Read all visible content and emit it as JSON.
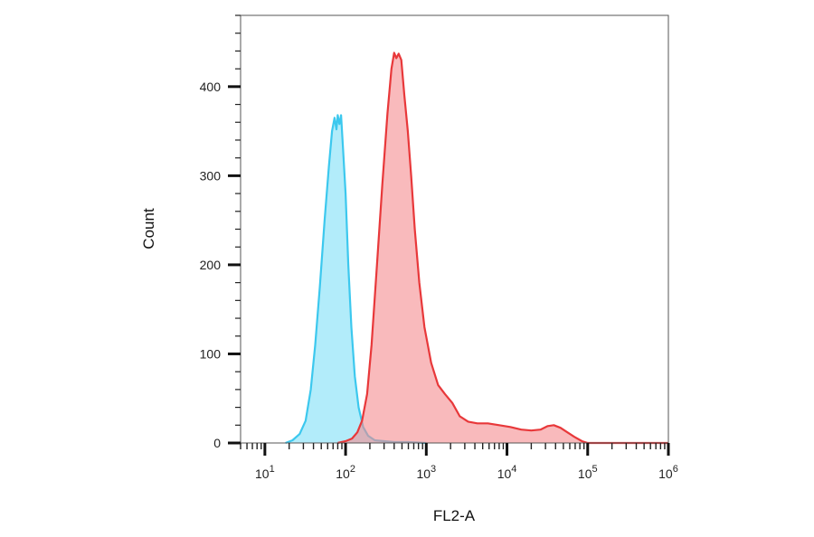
{
  "chart_data": {
    "type": "area",
    "xlabel": "FL2-A",
    "ylabel": "Count",
    "x_scale": "log10",
    "xlim": [
      5,
      1000000
    ],
    "ylim": [
      0,
      480
    ],
    "x_ticks": [
      {
        "value": 10,
        "base": "10",
        "exp": "1"
      },
      {
        "value": 100,
        "base": "10",
        "exp": "2"
      },
      {
        "value": 1000,
        "base": "10",
        "exp": "3"
      },
      {
        "value": 10000,
        "base": "10",
        "exp": "4"
      },
      {
        "value": 100000,
        "base": "10",
        "exp": "5"
      },
      {
        "value": 1000000,
        "base": "10",
        "exp": "6"
      }
    ],
    "y_ticks": [
      {
        "value": 0,
        "label": "0"
      },
      {
        "value": 100,
        "label": "100"
      },
      {
        "value": 200,
        "label": "200"
      },
      {
        "value": 300,
        "label": "300"
      },
      {
        "value": 400,
        "label": "400"
      }
    ],
    "series": [
      {
        "color": "#3cc8ee",
        "fill": "#7fe0f7",
        "points": [
          [
            18,
            0
          ],
          [
            22,
            3
          ],
          [
            27,
            10
          ],
          [
            32,
            25
          ],
          [
            37,
            60
          ],
          [
            42,
            110
          ],
          [
            48,
            175
          ],
          [
            55,
            250
          ],
          [
            62,
            310
          ],
          [
            68,
            350
          ],
          [
            73,
            365
          ],
          [
            77,
            352
          ],
          [
            80,
            368
          ],
          [
            84,
            358
          ],
          [
            88,
            368
          ],
          [
            93,
            330
          ],
          [
            100,
            280
          ],
          [
            108,
            200
          ],
          [
            118,
            130
          ],
          [
            130,
            75
          ],
          [
            145,
            40
          ],
          [
            165,
            18
          ],
          [
            190,
            8
          ],
          [
            230,
            3
          ],
          [
            300,
            2
          ],
          [
            400,
            1
          ],
          [
            600,
            1
          ],
          [
            1000,
            0
          ]
        ]
      },
      {
        "color": "#e8383a",
        "fill": "#f58c8f",
        "points": [
          [
            80,
            0
          ],
          [
            100,
            2
          ],
          [
            120,
            5
          ],
          [
            140,
            12
          ],
          [
            160,
            25
          ],
          [
            185,
            55
          ],
          [
            210,
            110
          ],
          [
            245,
            200
          ],
          [
            285,
            290
          ],
          [
            330,
            370
          ],
          [
            370,
            420
          ],
          [
            400,
            438
          ],
          [
            425,
            432
          ],
          [
            455,
            437
          ],
          [
            490,
            430
          ],
          [
            535,
            390
          ],
          [
            590,
            350
          ],
          [
            650,
            300
          ],
          [
            720,
            240
          ],
          [
            820,
            180
          ],
          [
            950,
            130
          ],
          [
            1150,
            90
          ],
          [
            1400,
            65
          ],
          [
            1700,
            55
          ],
          [
            2100,
            45
          ],
          [
            2600,
            30
          ],
          [
            3300,
            24
          ],
          [
            4300,
            22
          ],
          [
            5800,
            22
          ],
          [
            8000,
            20
          ],
          [
            11000,
            18
          ],
          [
            15000,
            15
          ],
          [
            20000,
            14
          ],
          [
            26000,
            15
          ],
          [
            32000,
            19
          ],
          [
            38000,
            20
          ],
          [
            46000,
            17
          ],
          [
            56000,
            12
          ],
          [
            68000,
            7
          ],
          [
            85000,
            2
          ],
          [
            100000,
            0
          ],
          [
            1000000,
            0
          ]
        ]
      }
    ]
  }
}
